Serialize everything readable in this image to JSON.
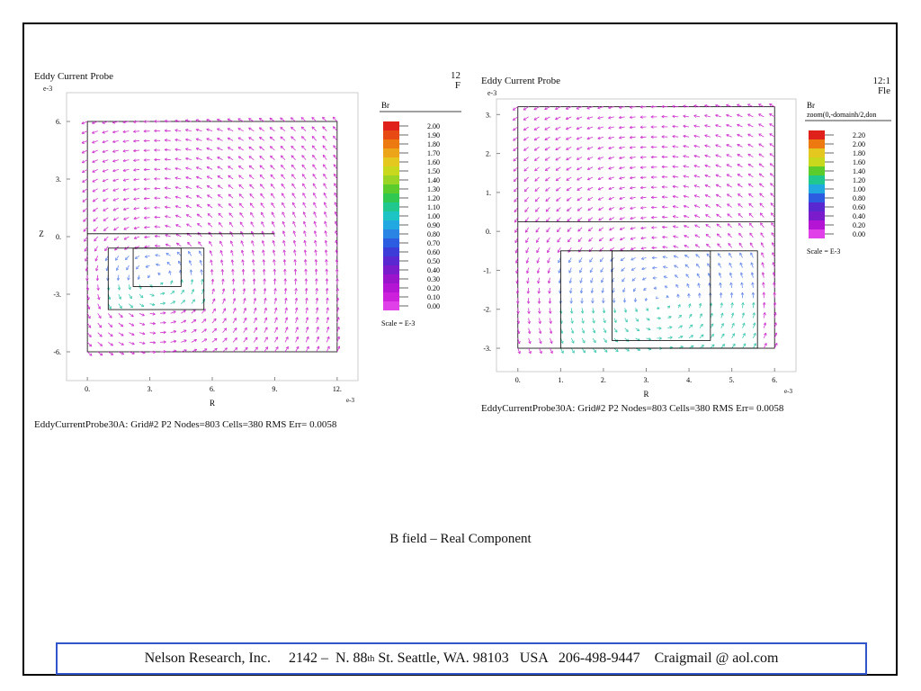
{
  "panels": [
    {
      "title": "Eddy Current Probe",
      "corner_top": "12",
      "corner_bottom": "F",
      "axis_exp_y": "e-3",
      "axis_exp_x": "e-3",
      "status": "EddyCurrentProbe30A:  Grid#2  P2  Nodes=803 Cells=380 RMS Err= 0.0058",
      "legend": {
        "variable": "Br",
        "subtitle": "",
        "scale_note": "Scale = E-3",
        "values": [
          "2.00",
          "1.90",
          "1.80",
          "1.70",
          "1.60",
          "1.50",
          "1.40",
          "1.30",
          "1.20",
          "1.10",
          "1.00",
          "0.90",
          "0.80",
          "0.70",
          "0.60",
          "0.50",
          "0.40",
          "0.30",
          "0.20",
          "0.10",
          "0.00"
        ]
      },
      "chart_data": {
        "type": "vector-field",
        "xlabel": "R",
        "ylabel": "Z",
        "xlim": [
          -1,
          13
        ],
        "ylim": [
          -7.5,
          7.5
        ],
        "x_ticks": [
          0,
          3,
          6,
          9,
          12
        ],
        "x_tick_labels": [
          "0.",
          "3.",
          "6.",
          "9.",
          "12."
        ],
        "y_ticks": [
          6,
          3,
          0,
          -3,
          -6
        ],
        "y_tick_labels": [
          "6.",
          "3.",
          "0.",
          "-3.",
          "-6."
        ],
        "domain": [
          [
            0,
            -6
          ],
          [
            12,
            6
          ]
        ],
        "coil": [
          [
            1,
            -3.8
          ],
          [
            5.6,
            -0.6
          ]
        ],
        "coil_inner": [
          [
            2.2,
            -2.6
          ],
          [
            4.5,
            -0.6
          ]
        ],
        "shield_line_y": 0.15,
        "shield_line_x": [
          0,
          9
        ]
      }
    },
    {
      "title": "Eddy Current Probe",
      "corner_top": "12:1",
      "corner_bottom": "Fle",
      "axis_exp_y": "e-3",
      "axis_exp_x": "e-3",
      "status": "EddyCurrentProbe30A:  Grid#2  P2  Nodes=803 Cells=380 RMS Err= 0.0058",
      "legend": {
        "variable": "Br",
        "subtitle": "zoom(0,-domainh/2,don",
        "scale_note": "Scale = E-3",
        "values": [
          "2.20",
          "2.00",
          "1.80",
          "1.60",
          "1.40",
          "1.20",
          "1.00",
          "0.80",
          "0.60",
          "0.40",
          "0.20",
          "0.00"
        ]
      },
      "chart_data": {
        "type": "vector-field",
        "xlabel": "R",
        "ylabel": "Z",
        "xlim": [
          -0.5,
          6.5
        ],
        "ylim": [
          -3.6,
          3.4
        ],
        "x_ticks": [
          0,
          1,
          2,
          3,
          4,
          5,
          6
        ],
        "x_tick_labels": [
          "0.",
          "1.",
          "2.",
          "3.",
          "4.",
          "5.",
          "6."
        ],
        "y_ticks": [
          3,
          2,
          1,
          0,
          -1,
          -2,
          -3
        ],
        "y_tick_labels": [
          "3.",
          "2.",
          "1.",
          "0.",
          "-1.",
          "-2.",
          "-3."
        ],
        "domain": [
          [
            0,
            -3
          ],
          [
            6,
            3.2
          ]
        ],
        "coil": [
          [
            1,
            -3
          ],
          [
            5.6,
            -0.5
          ]
        ],
        "coil_inner": [
          [
            2.2,
            -2.8
          ],
          [
            4.5,
            -0.5
          ]
        ],
        "shield_line_y": 0.25,
        "shield_line_x": [
          0,
          6
        ]
      }
    }
  ],
  "caption": "B field – Real Component",
  "footer": {
    "company": "Nelson Research, Inc.",
    "street_a": "2142 –  N. 88",
    "street_sup": "th",
    "street_b": " St. Seattle, WA. 98103   USA   206-498-9447    Craigmail @ aol.com"
  },
  "colors": {
    "arrow": "#cc33cc",
    "frame": "#000000",
    "footer_border": "#3355cc"
  }
}
